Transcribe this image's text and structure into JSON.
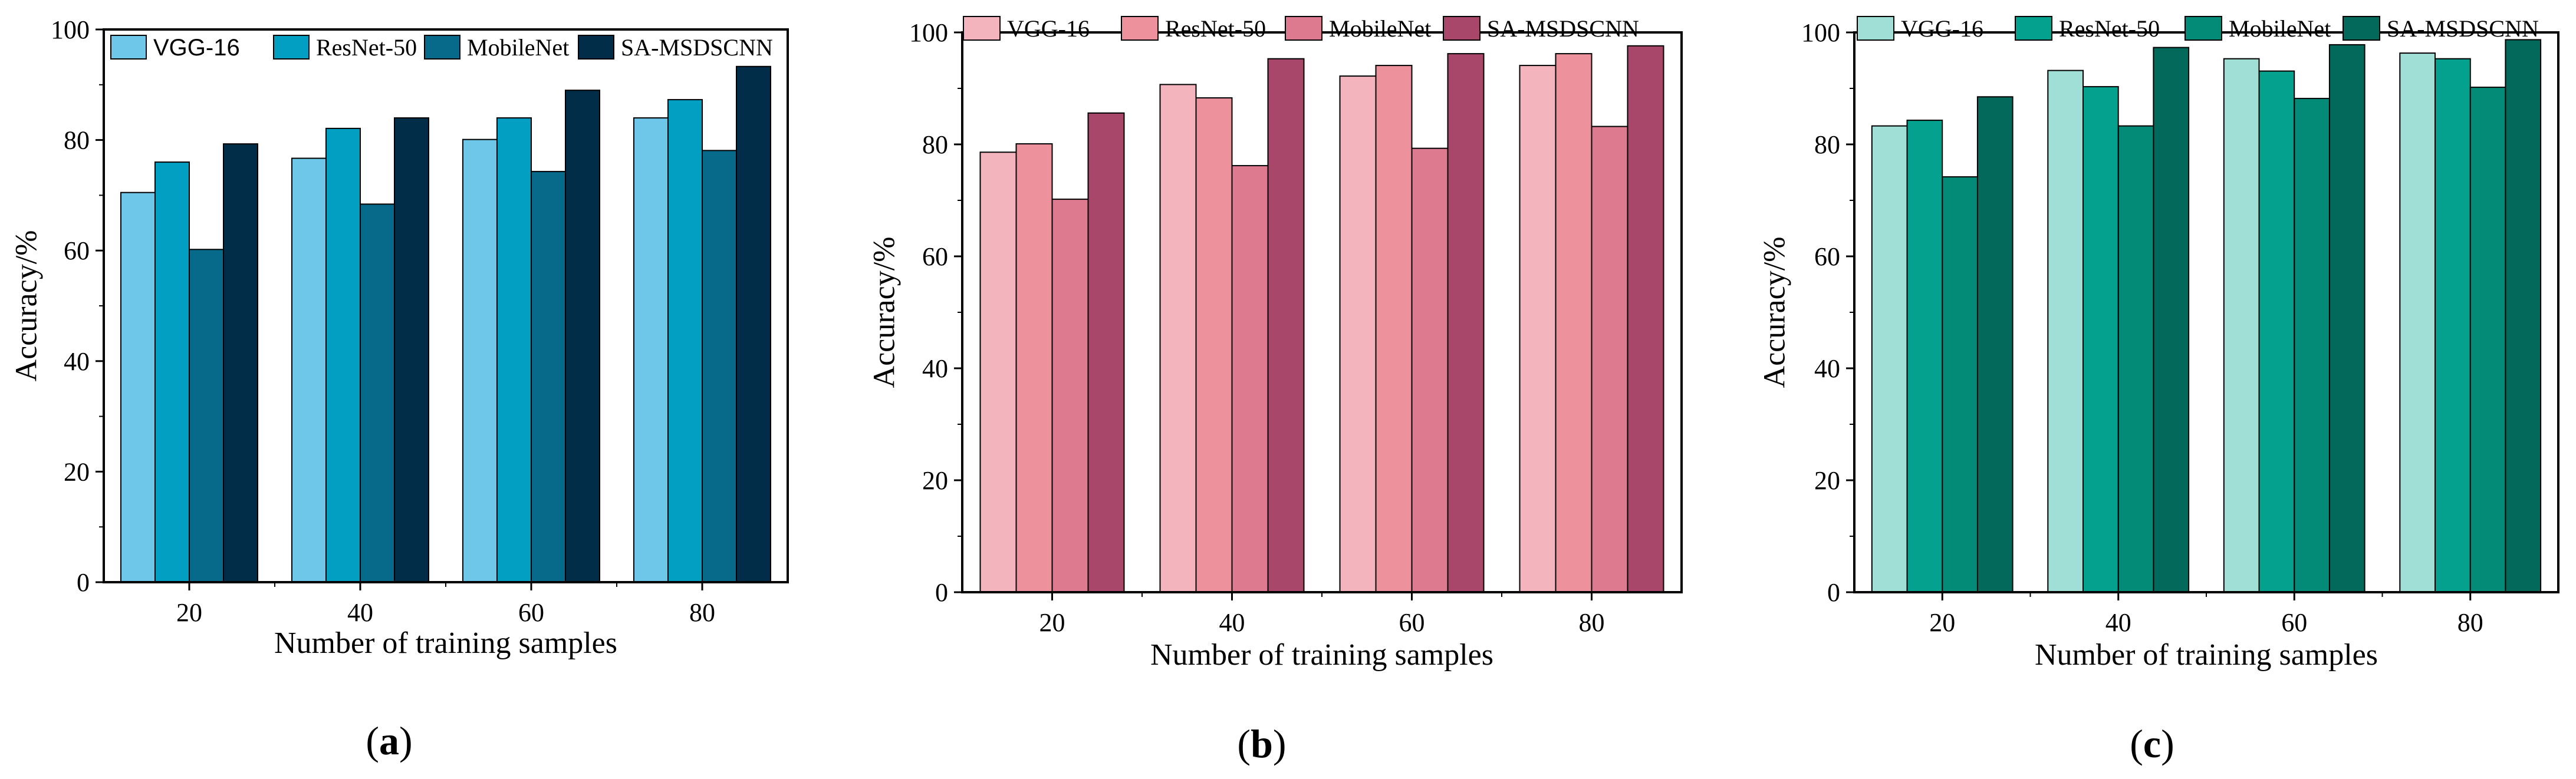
{
  "chart_data": [
    {
      "type": "bar",
      "panel_label": "a",
      "categories": [
        "20",
        "40",
        "60",
        "80"
      ],
      "series": [
        {
          "name": "VGG-16",
          "values": [
            70.5,
            76.7,
            80.1,
            84.0
          ],
          "color": "#6ec7e8"
        },
        {
          "name": "ResNet-50",
          "values": [
            76.0,
            82.1,
            84.0,
            87.3
          ],
          "color": "#039fc3"
        },
        {
          "name": "MobileNet",
          "values": [
            60.2,
            68.4,
            74.3,
            78.1
          ],
          "color": "#076a8b"
        },
        {
          "name": "SA-MSDSCNN",
          "values": [
            79.3,
            84.0,
            89.0,
            93.3
          ],
          "color": "#022d49"
        }
      ],
      "xlabel": "Number of training samples",
      "ylabel": "Accuracy/%",
      "ylim": [
        0,
        100
      ],
      "yticks": [
        0,
        20,
        40,
        60,
        80,
        100
      ],
      "legend_position": "top"
    },
    {
      "type": "bar",
      "panel_label": "b",
      "categories": [
        "20",
        "40",
        "60",
        "80"
      ],
      "series": [
        {
          "name": "VGG-16",
          "values": [
            78.6,
            90.7,
            92.2,
            94.1
          ],
          "color": "#f4b4be"
        },
        {
          "name": "ResNet-50",
          "values": [
            80.1,
            88.3,
            94.1,
            96.2
          ],
          "color": "#ed919c"
        },
        {
          "name": "MobileNet",
          "values": [
            70.2,
            76.2,
            79.3,
            83.2
          ],
          "color": "#de7a90"
        },
        {
          "name": "SA-MSDSCNN",
          "values": [
            85.6,
            95.3,
            96.2,
            97.6
          ],
          "color": "#a8476a"
        }
      ],
      "xlabel": "Number of training samples",
      "ylabel": "Accuracy/%",
      "ylim": [
        0,
        100
      ],
      "yticks": [
        0,
        20,
        40,
        60,
        80,
        100
      ],
      "legend_position": "top"
    },
    {
      "type": "bar",
      "panel_label": "c",
      "categories": [
        "20",
        "40",
        "60",
        "80"
      ],
      "series": [
        {
          "name": "VGG-16",
          "values": [
            83.3,
            93.2,
            95.3,
            96.3
          ],
          "color": "#9fdfd5"
        },
        {
          "name": "ResNet-50",
          "values": [
            84.3,
            90.3,
            93.1,
            95.3
          ],
          "color": "#04a28e"
        },
        {
          "name": "MobileNet",
          "values": [
            74.2,
            83.3,
            88.2,
            90.2
          ],
          "color": "#048b77"
        },
        {
          "name": "SA-MSDSCNN",
          "values": [
            88.5,
            97.3,
            97.8,
            98.7
          ],
          "color": "#03695a"
        }
      ],
      "xlabel": "Number of training samples",
      "ylabel": "Accuracy/%",
      "ylim": [
        0,
        100
      ],
      "yticks": [
        0,
        20,
        40,
        60,
        80,
        100
      ],
      "legend_position": "top"
    }
  ],
  "captions": [
    "(a)",
    "(b)",
    "(c)"
  ]
}
